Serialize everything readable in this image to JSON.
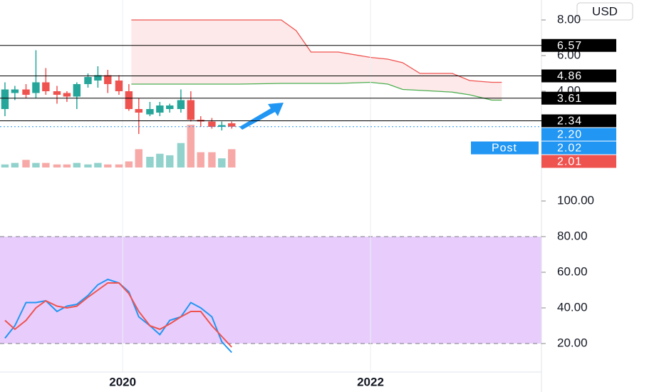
{
  "currency": "USD",
  "chart_data": [
    {
      "type": "candlestick",
      "x": [
        2019.05,
        2019.13,
        2019.22,
        2019.3,
        2019.38,
        2019.47,
        2019.55,
        2019.63,
        2019.72,
        2019.8,
        2019.88,
        2019.97,
        2020.05,
        2020.13,
        2020.22,
        2020.3,
        2020.38,
        2020.47,
        2020.55,
        2020.63,
        2020.72,
        2020.8,
        2020.88
      ],
      "open": [
        3.0,
        3.9,
        4.1,
        3.9,
        4.5,
        4.0,
        3.9,
        3.7,
        4.4,
        4.6,
        4.9,
        4.6,
        4.0,
        3.0,
        2.7,
        2.8,
        3.0,
        3.0,
        3.5,
        2.4,
        2.3,
        2.0,
        2.2
      ],
      "high": [
        4.5,
        4.3,
        4.4,
        6.3,
        5.3,
        4.3,
        4.0,
        4.5,
        5.0,
        5.4,
        5.2,
        4.9,
        4.4,
        3.6,
        3.4,
        3.4,
        3.3,
        4.1,
        4.0,
        2.6,
        2.5,
        2.3,
        2.3
      ],
      "low": [
        2.6,
        3.5,
        3.6,
        3.6,
        3.8,
        3.3,
        3.4,
        3.0,
        4.2,
        4.2,
        3.9,
        3.8,
        2.9,
        1.6,
        2.6,
        2.6,
        2.8,
        2.8,
        2.3,
        2.0,
        1.9,
        1.8,
        1.9
      ],
      "close": [
        4.1,
        4.1,
        3.8,
        4.5,
        4.0,
        3.8,
        3.7,
        4.4,
        4.8,
        4.9,
        4.4,
        4.0,
        3.0,
        2.8,
        3.0,
        3.2,
        3.2,
        3.5,
        2.4,
        2.3,
        2.0,
        2.1,
        2.01
      ],
      "volume": [
        2,
        3,
        5,
        3,
        3,
        2,
        2,
        3,
        2,
        3,
        2,
        2,
        4,
        12,
        7,
        9,
        8,
        16,
        28,
        10,
        10,
        6,
        12
      ],
      "up_color": "#26a69a",
      "down_color": "#ef5350",
      "xlim": [
        2019.01,
        2023.38
      ],
      "ylim": [
        0,
        9.12
      ],
      "yticks": [
        {
          "value": 8,
          "label": "8.00"
        },
        {
          "value": 6,
          "label": "6.00"
        },
        {
          "value": 4,
          "label": "4.00"
        }
      ],
      "cloud": {
        "x": [
          2020.07,
          2020.94,
          2021.28,
          2021.4,
          2021.52,
          2021.74,
          2022.0,
          2022.14,
          2022.26,
          2022.4,
          2022.66,
          2022.8,
          2022.98,
          2023.06
        ],
        "span_a": [
          4.4,
          4.4,
          4.44,
          4.44,
          4.44,
          4.44,
          4.5,
          4.4,
          4.1,
          4.05,
          3.95,
          3.8,
          3.5,
          3.5
        ],
        "span_b": [
          8.0,
          8.0,
          8.0,
          7.4,
          6.2,
          6.2,
          5.9,
          5.8,
          5.6,
          5.0,
          5.0,
          4.6,
          4.5,
          4.5
        ],
        "span_a_color": "#4caf50",
        "span_b_color": "#ef5350",
        "fill": "#fde3e3"
      },
      "levels": [
        {
          "value": 6.57,
          "label": "6.57"
        },
        {
          "value": 4.86,
          "label": "4.86"
        },
        {
          "value": 3.61,
          "label": "3.61"
        },
        {
          "value": 2.34,
          "label": "2.34"
        }
      ],
      "price_labels": [
        {
          "value": 2.2,
          "label": "2.20",
          "color": "#2196f3"
        },
        {
          "value": 2.02,
          "label": "2.02",
          "name": "Post",
          "color": "#2196f3"
        },
        {
          "value": 2.01,
          "label": "2.01",
          "color": "#ef5350"
        }
      ]
    },
    {
      "type": "line",
      "x": [
        2019.05,
        2019.13,
        2019.22,
        2019.3,
        2019.38,
        2019.47,
        2019.55,
        2019.63,
        2019.72,
        2019.8,
        2019.88,
        2019.97,
        2020.05,
        2020.13,
        2020.22,
        2020.3,
        2020.38,
        2020.47,
        2020.55,
        2020.63,
        2020.72,
        2020.8,
        2020.88
      ],
      "series": [
        {
          "color": "#2196f3",
          "values": [
            23,
            30,
            43,
            43,
            44,
            38,
            41,
            42,
            47,
            53,
            56,
            54,
            49,
            35,
            30,
            25,
            33,
            35,
            43,
            40,
            35,
            21,
            15
          ]
        },
        {
          "color": "#ef5350",
          "values": [
            33,
            28,
            33,
            40,
            44,
            41,
            40,
            41,
            46,
            50,
            54,
            54,
            48,
            38,
            30,
            28,
            31,
            35,
            38,
            38,
            30,
            24,
            18
          ]
        }
      ],
      "xlim": [
        2019.01,
        2023.38
      ],
      "ylim": [
        0,
        112.8
      ],
      "yticks": [
        {
          "value": 100,
          "label": "100.00"
        },
        {
          "value": 80,
          "label": "80.00"
        },
        {
          "value": 60,
          "label": "60.00"
        },
        {
          "value": 40,
          "label": "40.00"
        },
        {
          "value": 20,
          "label": "20.00"
        }
      ],
      "band": [
        20,
        80
      ],
      "band_color": "#e8cdfc",
      "xticks": [
        2020,
        2022
      ]
    }
  ]
}
